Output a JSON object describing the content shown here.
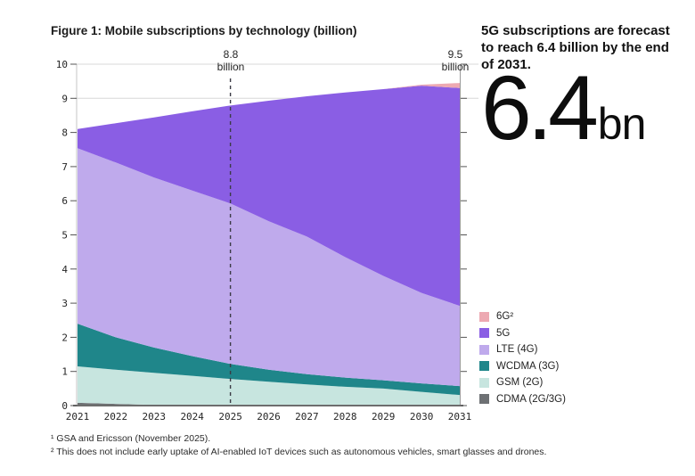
{
  "title": "Figure 1: Mobile subscriptions by technology (billion)",
  "callout": {
    "heading": "5G subscriptions are forecast to reach 6.4 billion by the end of 2031.",
    "big_value": "6.4",
    "big_unit": "bn"
  },
  "annotations": {
    "y2025": {
      "value": "8.8",
      "unit": "billion"
    },
    "y2031": {
      "value": "9.5",
      "unit": "billion"
    }
  },
  "footnotes": [
    "¹ GSA and Ericsson (November 2025).",
    "² This does not include early uptake of AI-enabled IoT devices such as autonomous vehicles, smart glasses and drones."
  ],
  "chart_data": {
    "type": "area",
    "stacked": true,
    "title": "Mobile subscriptions by technology (billion)",
    "xlabel": "",
    "ylabel": "",
    "x": [
      2021,
      2022,
      2023,
      2024,
      2025,
      2026,
      2027,
      2028,
      2029,
      2030,
      2031
    ],
    "ylim": [
      0,
      10
    ],
    "y_ticks": [
      0,
      1,
      2,
      3,
      4,
      5,
      6,
      7,
      8,
      9,
      10
    ],
    "gridlines_at": [
      9,
      10
    ],
    "dashed_marker_x": 2025,
    "annotated_totals": {
      "2025": 8.8,
      "2031": 9.5
    },
    "legend_position": "right-bottom",
    "series": [
      {
        "name": "CDMA (2G/3G)",
        "label": "CDMA (2G/3G)",
        "color": "#6E7174",
        "values": [
          0.08,
          0.05,
          0.02,
          0.01,
          0,
          0,
          0,
          0,
          0,
          0,
          0
        ]
      },
      {
        "name": "GSM (2G)",
        "label": "GSM (2G)",
        "color": "#C7E5DF",
        "values": [
          1.07,
          1.0,
          0.94,
          0.86,
          0.78,
          0.7,
          0.62,
          0.55,
          0.5,
          0.4,
          0.31
        ]
      },
      {
        "name": "WCDMA (3G)",
        "label": "WCDMA (3G)",
        "color": "#1F868A",
        "values": [
          1.25,
          0.95,
          0.74,
          0.58,
          0.44,
          0.35,
          0.3,
          0.27,
          0.24,
          0.25,
          0.26
        ]
      },
      {
        "name": "LTE (4G)",
        "label": "LTE (4G)",
        "color": "#BFAAEC",
        "values": [
          5.14,
          5.12,
          4.98,
          4.85,
          4.7,
          4.35,
          4.03,
          3.53,
          3.06,
          2.65,
          2.35
        ]
      },
      {
        "name": "5G",
        "label": "5G",
        "color": "#8A5EE4",
        "values": [
          0.56,
          1.15,
          1.76,
          2.32,
          2.87,
          3.53,
          4.11,
          4.82,
          5.47,
          6.07,
          6.38
        ]
      },
      {
        "name": "6G",
        "label": "6G²",
        "color": "#EDA9B2",
        "values": [
          0,
          0,
          0,
          0,
          0,
          0,
          0,
          0,
          0,
          0.03,
          0.15
        ]
      }
    ]
  }
}
